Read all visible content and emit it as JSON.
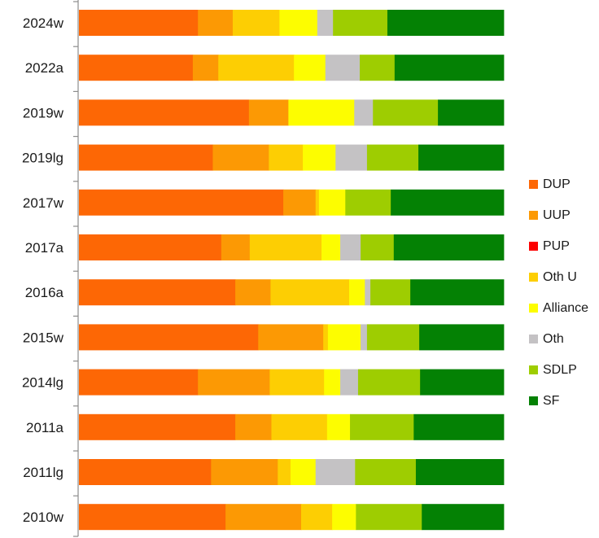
{
  "chart_data": {
    "type": "bar",
    "orientation": "horizontal",
    "stacked": "percent",
    "title": "",
    "xlabel": "",
    "ylabel": "",
    "xlim": [
      0,
      100
    ],
    "grid": false,
    "legend_position": "right",
    "categories": [
      "2024w",
      "2022a",
      "2019w",
      "2019lg",
      "2017w",
      "2017a",
      "2016a",
      "2015w",
      "2014lg",
      "2011a",
      "2011lg",
      "2010w"
    ],
    "series": [
      {
        "name": "DUP",
        "color": "#fd6705",
        "values": [
          28.0,
          26.8,
          40.0,
          31.5,
          48.1,
          33.5,
          36.8,
          42.2,
          28.0,
          36.8,
          31.1,
          34.5
        ]
      },
      {
        "name": "UUP",
        "color": "#fc9904",
        "values": [
          8.2,
          6.0,
          9.3,
          13.2,
          7.6,
          6.7,
          8.3,
          15.3,
          16.9,
          8.5,
          15.7,
          17.8
        ]
      },
      {
        "name": "PUP",
        "color": "#fc0000",
        "values": [
          0,
          0,
          0,
          0,
          0,
          0,
          0,
          0,
          0,
          0,
          0,
          0
        ]
      },
      {
        "name": "Oth U",
        "color": "#fdce03",
        "values": [
          11.0,
          17.8,
          0,
          8.0,
          0.8,
          16.9,
          18.5,
          1.1,
          12.8,
          13.1,
          3.0,
          7.3
        ]
      },
      {
        "name": "Alliance",
        "color": "#fdfd00",
        "values": [
          8.9,
          7.4,
          15.5,
          7.7,
          6.2,
          4.4,
          3.7,
          7.7,
          3.8,
          5.4,
          5.9,
          5.6
        ]
      },
      {
        "name": "Oth",
        "color": "#c4c2c4",
        "values": [
          3.7,
          8.1,
          4.4,
          7.4,
          0,
          4.8,
          1.3,
          1.5,
          4.2,
          0,
          9.3,
          0
        ]
      },
      {
        "name": "SDLP",
        "color": "#9ecd01",
        "values": [
          12.8,
          8.2,
          15.3,
          12.1,
          10.7,
          7.8,
          9.4,
          12.3,
          14.6,
          15.0,
          14.3,
          15.5
        ]
      },
      {
        "name": "SF",
        "color": "#048104",
        "values": [
          27.4,
          25.7,
          15.5,
          20.1,
          26.6,
          25.9,
          22.0,
          19.9,
          19.7,
          21.2,
          20.7,
          19.3
        ]
      }
    ],
    "axis_color": "#8c8c8c"
  }
}
